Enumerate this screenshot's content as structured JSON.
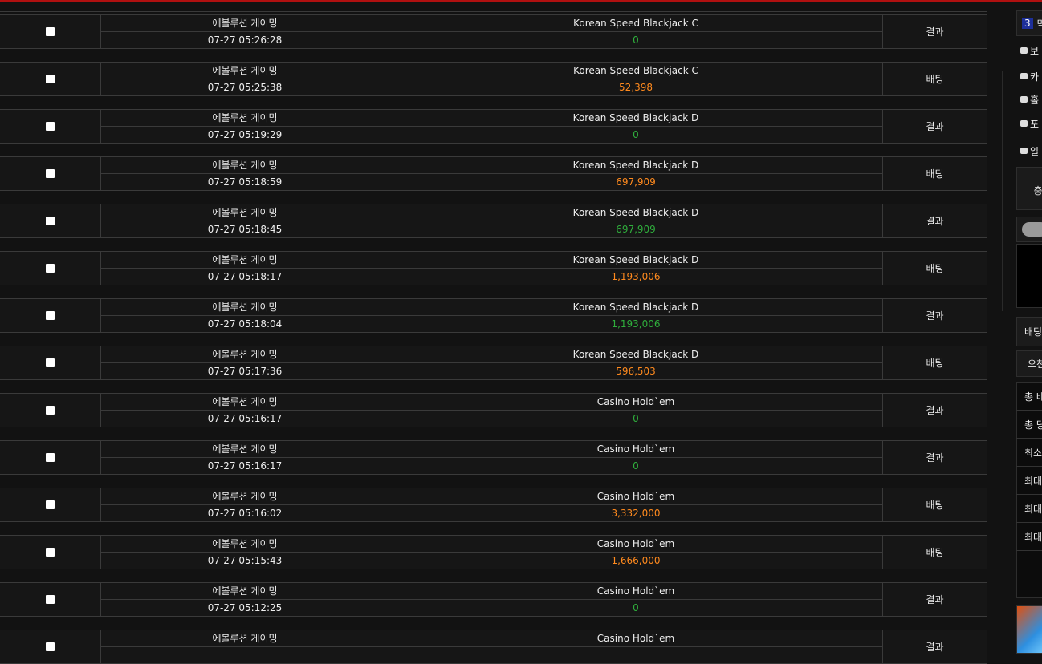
{
  "rows": [
    {
      "provider": "에볼루션 게이밍",
      "time": "07-27 05:26:28",
      "game": "Korean Speed Blackjack C",
      "amount": "0",
      "amount_color": "#2fae3c",
      "status": "결과"
    },
    {
      "provider": "에볼루션 게이밍",
      "time": "07-27 05:25:38",
      "game": "Korean Speed Blackjack C",
      "amount": "52,398",
      "amount_color": "#ff8a1e",
      "status": "배팅"
    },
    {
      "provider": "에볼루션 게이밍",
      "time": "07-27 05:19:29",
      "game": "Korean Speed Blackjack D",
      "amount": "0",
      "amount_color": "#2fae3c",
      "status": "결과"
    },
    {
      "provider": "에볼루션 게이밍",
      "time": "07-27 05:18:59",
      "game": "Korean Speed Blackjack D",
      "amount": "697,909",
      "amount_color": "#ff8a1e",
      "status": "배팅"
    },
    {
      "provider": "에볼루션 게이밍",
      "time": "07-27 05:18:45",
      "game": "Korean Speed Blackjack D",
      "amount": "697,909",
      "amount_color": "#2fae3c",
      "status": "결과"
    },
    {
      "provider": "에볼루션 게이밍",
      "time": "07-27 05:18:17",
      "game": "Korean Speed Blackjack D",
      "amount": "1,193,006",
      "amount_color": "#ff8a1e",
      "status": "배팅"
    },
    {
      "provider": "에볼루션 게이밍",
      "time": "07-27 05:18:04",
      "game": "Korean Speed Blackjack D",
      "amount": "1,193,006",
      "amount_color": "#2fae3c",
      "status": "결과"
    },
    {
      "provider": "에볼루션 게이밍",
      "time": "07-27 05:17:36",
      "game": "Korean Speed Blackjack D",
      "amount": "596,503",
      "amount_color": "#ff8a1e",
      "status": "배팅"
    },
    {
      "provider": "에볼루션 게이밍",
      "time": "07-27 05:16:17",
      "game": "Casino Hold`em",
      "amount": "0",
      "amount_color": "#2fae3c",
      "status": "결과"
    },
    {
      "provider": "에볼루션 게이밍",
      "time": "07-27 05:16:17",
      "game": "Casino Hold`em",
      "amount": "0",
      "amount_color": "#2fae3c",
      "status": "결과"
    },
    {
      "provider": "에볼루션 게이밍",
      "time": "07-27 05:16:02",
      "game": "Casino Hold`em",
      "amount": "3,332,000",
      "amount_color": "#ff8a1e",
      "status": "배팅"
    },
    {
      "provider": "에볼루션 게이밍",
      "time": "07-27 05:15:43",
      "game": "Casino Hold`em",
      "amount": "1,666,000",
      "amount_color": "#ff8a1e",
      "status": "배팅"
    },
    {
      "provider": "에볼루션 게이밍",
      "time": "07-27 05:12:25",
      "game": "Casino Hold`em",
      "amount": "0",
      "amount_color": "#2fae3c",
      "status": "결과"
    },
    {
      "provider": "에볼루션 게이밍",
      "game": "Casino Hold`em",
      "status": "결과"
    }
  ],
  "sidebar": {
    "badge": "3",
    "badge_text": "막",
    "menu": [
      "보",
      "카",
      "홀",
      "포",
      "일"
    ],
    "charge": "충",
    "bet_title": "배팅",
    "bet_sub": "오천",
    "stats": [
      "총 배",
      "총 당",
      "최소",
      "최대",
      "최대",
      "최대"
    ]
  }
}
